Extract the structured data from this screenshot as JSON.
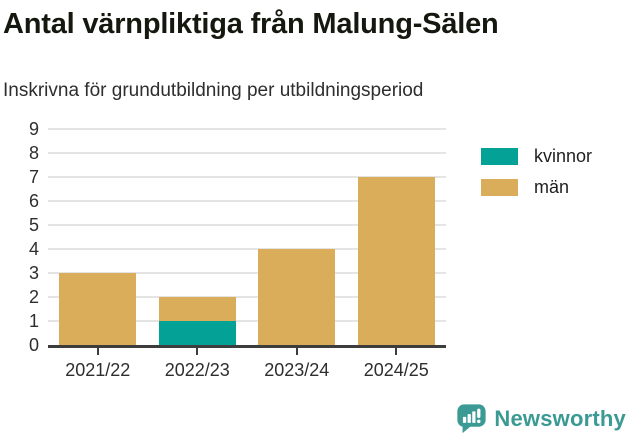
{
  "header": {
    "title": "Antal värnpliktiga från Malung-Sälen",
    "subtitle": "Inskrivna för grundutbildning per utbildningsperiod"
  },
  "chart_data": {
    "type": "bar",
    "stacked": true,
    "title": "Antal värnpliktiga från Malung-Sälen",
    "subtitle": "Inskrivna för grundutbildning per utbildningsperiod",
    "categories": [
      "2021/22",
      "2022/23",
      "2023/24",
      "2024/25"
    ],
    "series": [
      {
        "name": "kvinnor",
        "color": "#04a196",
        "values": [
          0,
          1,
          0,
          0
        ]
      },
      {
        "name": "män",
        "color": "#d9ad5a",
        "values": [
          3,
          1,
          4,
          7
        ]
      }
    ],
    "totals": [
      3,
      2,
      4,
      7
    ],
    "xlabel": "",
    "ylabel": "",
    "ylim": [
      0,
      9
    ],
    "yticks": [
      0,
      1,
      2,
      3,
      4,
      5,
      6,
      7,
      8,
      9
    ],
    "grid": true,
    "legend_position": "right"
  },
  "legend": {
    "items": [
      {
        "label": "kvinnor",
        "color": "#04a196"
      },
      {
        "label": "män",
        "color": "#d9ad5a"
      }
    ]
  },
  "footer": {
    "brand": "Newsworthy"
  },
  "colors": {
    "accent_teal": "#04a196",
    "accent_tan": "#d9ad5a",
    "brand_teal": "#3b9a93",
    "axis": "#3d3d3d",
    "gridline": "#e4e4e4"
  }
}
